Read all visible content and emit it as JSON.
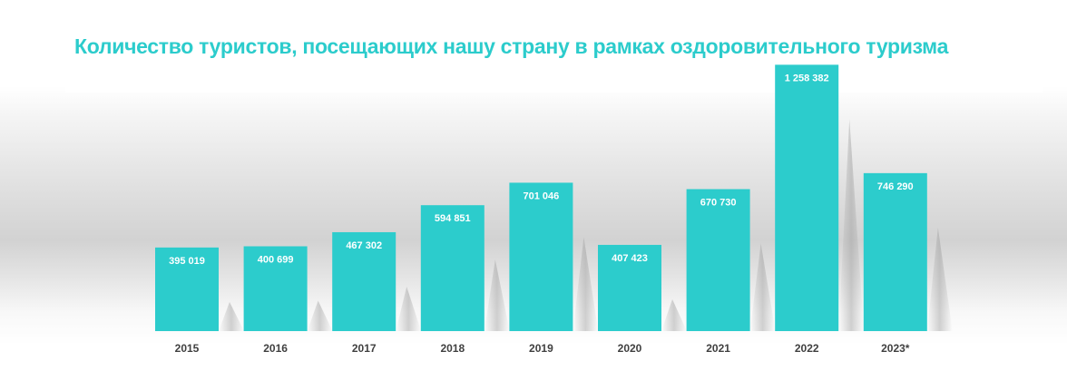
{
  "colors": {
    "bar": "#2ccccc",
    "title": "#2ccccc",
    "bar_label": "#ffffff",
    "axis_label": "#404040"
  },
  "chart_data": {
    "type": "bar",
    "title": "Количество туристов, посещающих нашу страну в рамках оздоровительного туризма",
    "xlabel": "",
    "ylabel": "",
    "categories": [
      "2015",
      "2016",
      "2017",
      "2018",
      "2019",
      "2020",
      "2021",
      "2022",
      "2023*"
    ],
    "values": [
      395019,
      400699,
      467302,
      594851,
      701046,
      407423,
      670730,
      1258382,
      746290
    ],
    "value_labels": [
      "395 019",
      "400 699",
      "467 302",
      "594 851",
      "701 046",
      "407 423",
      "670 730",
      "1 258 382",
      "746 290"
    ],
    "ylim": [
      0,
      1350000
    ],
    "grid": false,
    "legend": "none",
    "data_label_position": "inside-top"
  }
}
